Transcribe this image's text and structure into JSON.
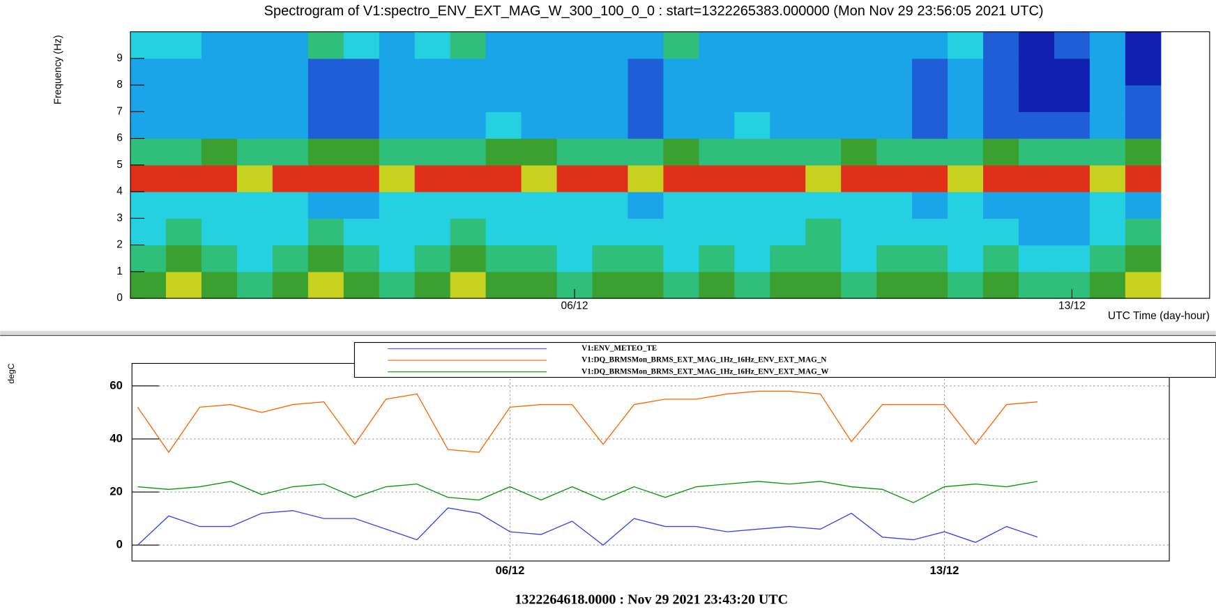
{
  "chart_data": [
    {
      "type": "heatmap",
      "title": "Spectrogram of V1:spectro_ENV_EXT_MAG_W_300_100_0_0 : start=1322265383.000000 (Mon Nov 29 23:56:05 2021 UTC)",
      "y_label": "Frequency (Hz)",
      "x_label": "UTC Time (day-hour)",
      "categories": [
        null,
        null,
        null,
        null,
        null,
        null,
        null,
        null,
        null,
        null,
        null,
        null,
        "06/12",
        null,
        null,
        null,
        null,
        null,
        null,
        null,
        null,
        null,
        null,
        null,
        null,
        null,
        "13/12",
        null,
        null
      ],
      "ylim": [
        0,
        10
      ],
      "yticks": [
        0,
        1,
        2,
        3,
        4,
        5,
        6,
        7,
        8,
        9
      ],
      "zlim": [
        0,
        9
      ],
      "colorscale": [
        "#0b0b6e",
        "#1020b0",
        "#1e5fd8",
        "#1aa5e8",
        "#25d0e0",
        "#2fbf7a",
        "#3aa030",
        "#c8d020",
        "#e0301a",
        "#8a0a0a"
      ],
      "values": [
        [
          6,
          7,
          6,
          5,
          6,
          7,
          6,
          5,
          6,
          7,
          6,
          6,
          5,
          6,
          6,
          5,
          6,
          5,
          6,
          6,
          5,
          6,
          6,
          5,
          6,
          5,
          5,
          6,
          7
        ],
        [
          5,
          6,
          5,
          4,
          5,
          6,
          5,
          4,
          5,
          6,
          5,
          5,
          4,
          5,
          5,
          4,
          5,
          4,
          5,
          5,
          4,
          5,
          5,
          4,
          5,
          4,
          4,
          5,
          6
        ],
        [
          4,
          5,
          4,
          4,
          4,
          5,
          4,
          4,
          4,
          5,
          4,
          4,
          4,
          4,
          4,
          4,
          4,
          4,
          4,
          5,
          4,
          4,
          4,
          4,
          4,
          3,
          3,
          4,
          5
        ],
        [
          4,
          4,
          4,
          4,
          4,
          3,
          3,
          4,
          4,
          4,
          4,
          4,
          4,
          4,
          3,
          4,
          4,
          4,
          4,
          4,
          4,
          4,
          3,
          4,
          3,
          3,
          3,
          4,
          3
        ],
        [
          8,
          8,
          8,
          7,
          8,
          8,
          8,
          7,
          8,
          8,
          8,
          7,
          8,
          8,
          7,
          8,
          8,
          8,
          8,
          7,
          8,
          8,
          8,
          7,
          8,
          8,
          8,
          7,
          8
        ],
        [
          5,
          5,
          6,
          5,
          5,
          6,
          6,
          5,
          5,
          5,
          6,
          6,
          5,
          5,
          5,
          6,
          5,
          5,
          5,
          5,
          6,
          5,
          5,
          5,
          6,
          5,
          5,
          5,
          6
        ],
        [
          3,
          3,
          3,
          3,
          3,
          2,
          2,
          3,
          3,
          3,
          4,
          3,
          3,
          3,
          2,
          3,
          3,
          4,
          3,
          3,
          3,
          3,
          2,
          3,
          2,
          2,
          2,
          3,
          2
        ],
        [
          3,
          3,
          3,
          3,
          3,
          2,
          2,
          3,
          3,
          3,
          3,
          3,
          3,
          3,
          2,
          3,
          3,
          3,
          3,
          3,
          3,
          3,
          2,
          3,
          2,
          1,
          1,
          3,
          2
        ],
        [
          3,
          3,
          3,
          3,
          3,
          2,
          2,
          3,
          3,
          3,
          3,
          3,
          3,
          3,
          2,
          3,
          3,
          3,
          3,
          3,
          3,
          3,
          2,
          3,
          2,
          1,
          1,
          3,
          1
        ],
        [
          4,
          4,
          3,
          3,
          3,
          5,
          4,
          3,
          4,
          5,
          3,
          3,
          3,
          3,
          3,
          5,
          3,
          3,
          3,
          3,
          3,
          3,
          3,
          4,
          2,
          1,
          2,
          3,
          1
        ]
      ]
    },
    {
      "type": "line",
      "y_label": "degC",
      "x_label": "1322264618.0000 : Nov 29 2021 23:43:20 UTC",
      "categories": [
        null,
        null,
        null,
        null,
        null,
        null,
        null,
        null,
        null,
        null,
        null,
        null,
        "06/12",
        null,
        null,
        null,
        null,
        null,
        null,
        null,
        null,
        null,
        null,
        null,
        null,
        null,
        "13/12",
        null,
        null,
        null
      ],
      "ylim": [
        -6,
        68.5
      ],
      "yticks": [
        0,
        20,
        40,
        60
      ],
      "grid": true,
      "legend": "top",
      "series": [
        {
          "name": "V1:ENV_METEO_TE",
          "color": "#3344ee",
          "values": [
            0,
            11,
            7,
            7,
            12,
            13,
            10,
            10,
            6,
            2,
            14,
            12,
            5,
            4,
            9,
            0,
            10,
            7,
            7,
            5,
            6,
            7,
            6,
            12,
            3,
            2,
            5,
            1,
            7,
            3
          ]
        },
        {
          "name": "V1:DQ_BRMSMon_BRMS_EXT_MAG_1Hz_16Hz_ENV_EXT_MAG_N",
          "color": "#ff6600",
          "values": [
            52,
            35,
            52,
            53,
            50,
            53,
            54,
            38,
            55,
            57,
            36,
            35,
            52,
            53,
            53,
            38,
            53,
            55,
            55,
            57,
            58,
            58,
            57,
            39,
            53,
            53,
            53,
            38,
            53,
            54
          ]
        },
        {
          "name": "V1:DQ_BRMSMon_BRMS_EXT_MAG_1Hz_16Hz_ENV_EXT_MAG_W",
          "color": "#009900",
          "values": [
            22,
            21,
            22,
            24,
            19,
            22,
            23,
            18,
            22,
            23,
            18,
            17,
            22,
            17,
            22,
            17,
            22,
            18,
            22,
            23,
            24,
            23,
            24,
            22,
            21,
            16,
            22,
            23,
            22,
            24
          ]
        }
      ]
    }
  ]
}
